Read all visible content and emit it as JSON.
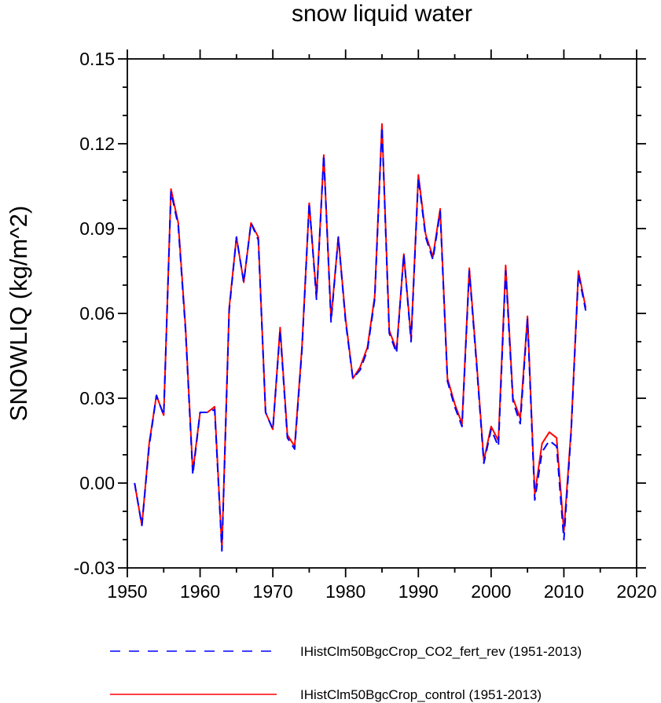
{
  "chart_data": {
    "type": "line",
    "title": "snow liquid water",
    "xlabel": "",
    "ylabel": "SNOWLIQ  (kg/m^2)",
    "xlim": [
      1950,
      2020
    ],
    "ylim": [
      -0.03,
      0.15
    ],
    "xticks": [
      1950,
      1960,
      1970,
      1980,
      1990,
      2000,
      2010,
      2020
    ],
    "xtick_labels": [
      "1950",
      "1960",
      "1970",
      "1980",
      "1990",
      "2000",
      "2010",
      "2020"
    ],
    "yticks": [
      -0.03,
      0.0,
      0.03,
      0.06,
      0.09,
      0.12,
      0.15
    ],
    "ytick_labels": [
      "-0.03",
      "0.00",
      "0.03",
      "0.06",
      "0.09",
      "0.12",
      "0.15"
    ],
    "grid": false,
    "legend_position": "bottom",
    "x": [
      1951,
      1952,
      1953,
      1954,
      1955,
      1956,
      1957,
      1958,
      1959,
      1960,
      1961,
      1962,
      1963,
      1964,
      1965,
      1966,
      1967,
      1968,
      1969,
      1970,
      1971,
      1972,
      1973,
      1974,
      1975,
      1976,
      1977,
      1978,
      1979,
      1980,
      1981,
      1982,
      1983,
      1984,
      1985,
      1986,
      1987,
      1988,
      1989,
      1990,
      1991,
      1992,
      1993,
      1994,
      1995,
      1996,
      1997,
      1998,
      1999,
      2000,
      2001,
      2002,
      2003,
      2004,
      2005,
      2006,
      2007,
      2008,
      2009,
      2010,
      2011,
      2012,
      2013
    ],
    "series": [
      {
        "name": "IHistClm50BgcCrop_CO2_fert_rev (1951-2013)",
        "color": "#0000ff",
        "style": "dashed",
        "values": [
          0.0,
          -0.015,
          0.013,
          0.031,
          0.024,
          0.103,
          0.091,
          0.054,
          0.003,
          0.025,
          0.025,
          0.026,
          -0.024,
          0.061,
          0.087,
          0.071,
          0.092,
          0.086,
          0.025,
          0.019,
          0.054,
          0.016,
          0.012,
          0.047,
          0.099,
          0.065,
          0.116,
          0.057,
          0.087,
          0.057,
          0.037,
          0.04,
          0.047,
          0.065,
          0.126,
          0.053,
          0.046,
          0.081,
          0.05,
          0.108,
          0.087,
          0.079,
          0.096,
          0.036,
          0.027,
          0.02,
          0.075,
          0.042,
          0.007,
          0.019,
          0.013,
          0.075,
          0.029,
          0.021,
          0.058,
          -0.006,
          0.011,
          0.015,
          0.013,
          -0.02,
          0.018,
          0.074,
          0.061
        ]
      },
      {
        "name": "IHistClm50BgcCrop_control (1951-2013)",
        "color": "#ff0000",
        "style": "solid",
        "values": [
          0.0,
          -0.015,
          0.014,
          0.031,
          0.024,
          0.104,
          0.092,
          0.055,
          0.004,
          0.025,
          0.025,
          0.027,
          -0.023,
          0.062,
          0.087,
          0.071,
          0.092,
          0.087,
          0.025,
          0.019,
          0.055,
          0.017,
          0.013,
          0.048,
          0.099,
          0.066,
          0.116,
          0.058,
          0.087,
          0.058,
          0.037,
          0.041,
          0.048,
          0.066,
          0.127,
          0.054,
          0.047,
          0.081,
          0.051,
          0.109,
          0.088,
          0.08,
          0.097,
          0.037,
          0.028,
          0.021,
          0.076,
          0.043,
          0.008,
          0.02,
          0.015,
          0.077,
          0.03,
          0.023,
          0.059,
          -0.004,
          0.014,
          0.018,
          0.016,
          -0.017,
          0.019,
          0.075,
          0.062
        ]
      }
    ]
  }
}
